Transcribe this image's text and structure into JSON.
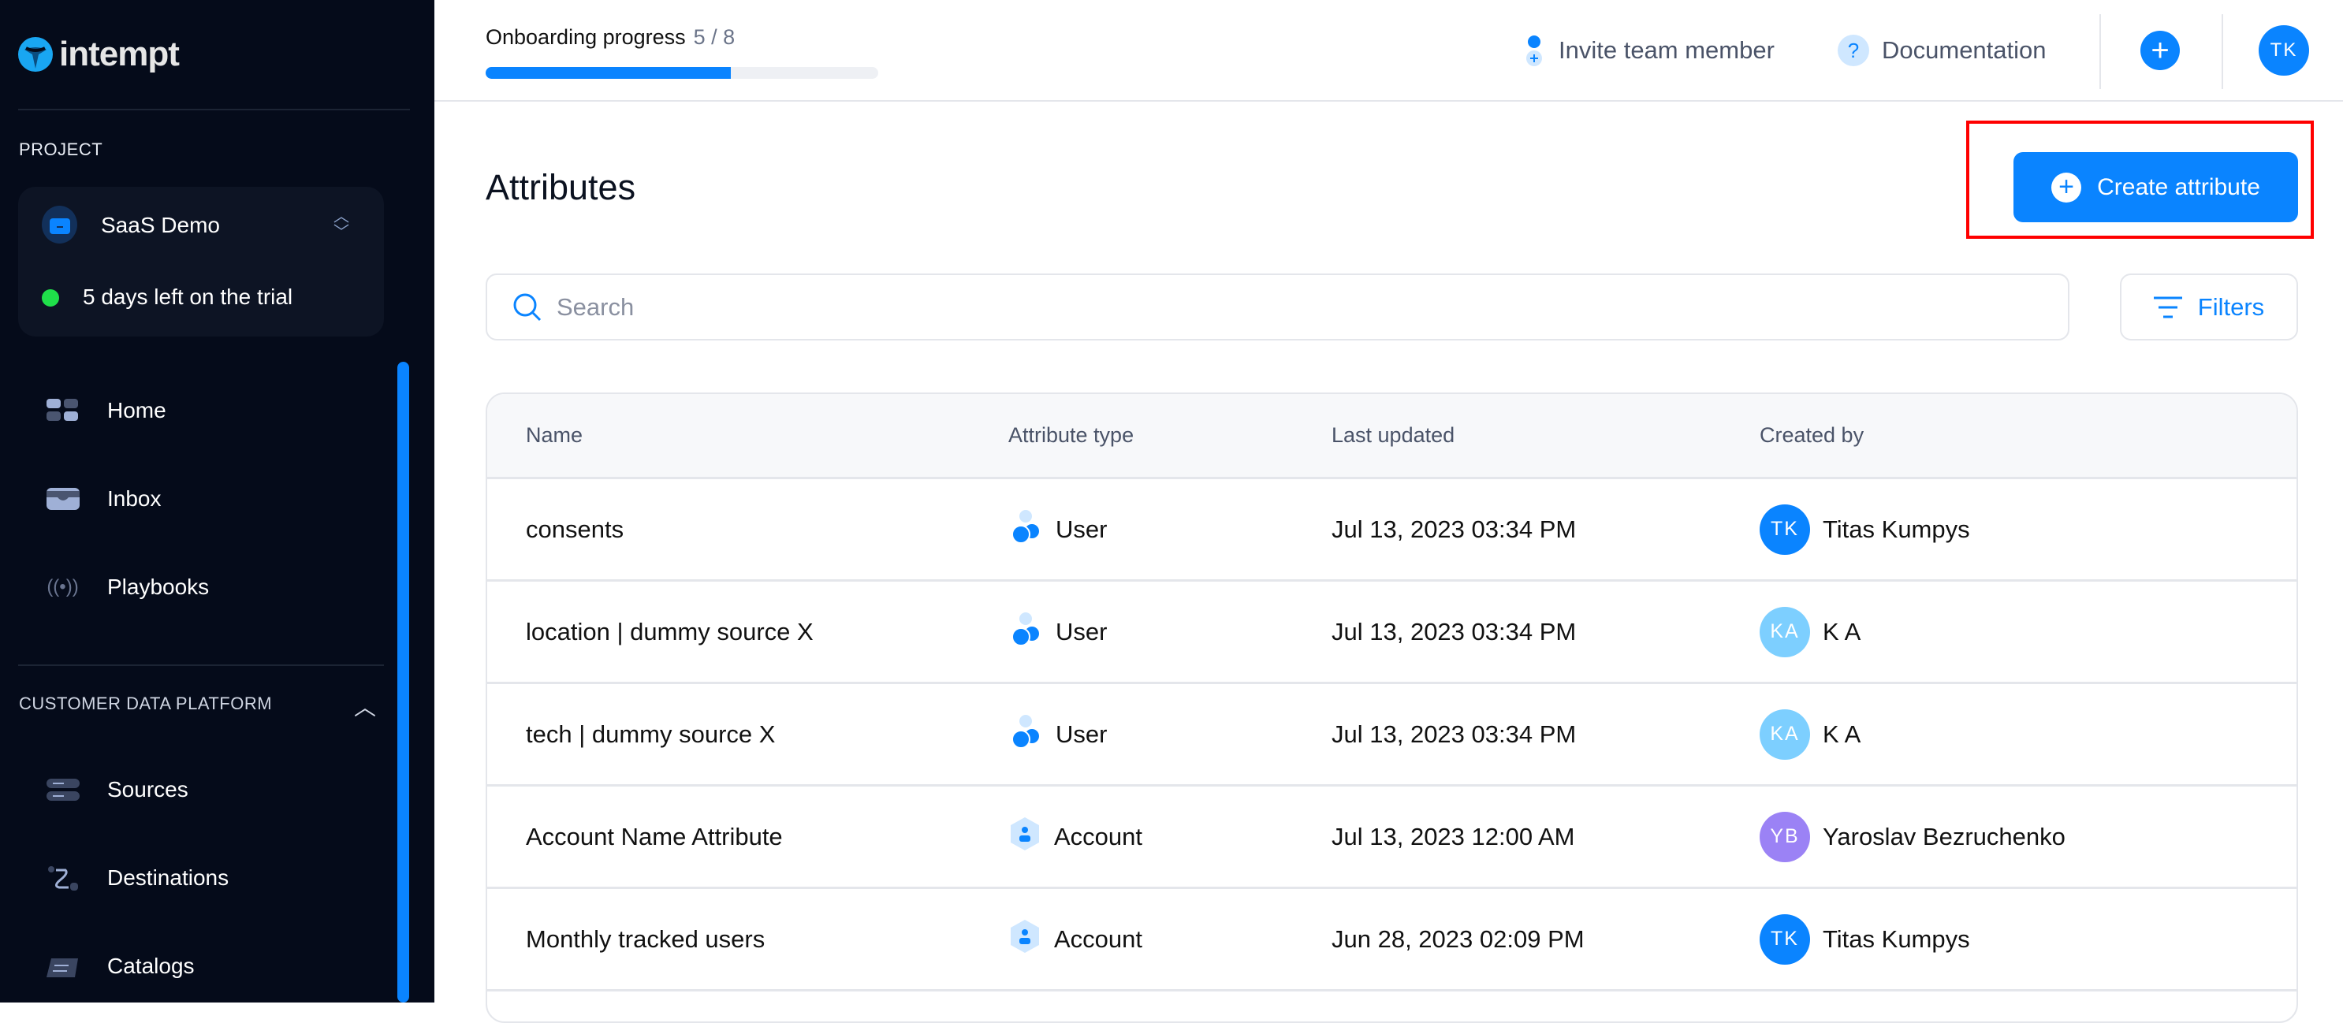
{
  "sidebar": {
    "logo": "intempt",
    "project_label": "PROJECT",
    "project_name": "SaaS Demo",
    "trial": "5 days left on the trial",
    "items": [
      {
        "label": "Home",
        "icon": "grid-icon"
      },
      {
        "label": "Inbox",
        "icon": "inbox-icon"
      },
      {
        "label": "Playbooks",
        "icon": "broadcast-icon"
      }
    ],
    "section": "CUSTOMER DATA PLATFORM",
    "section_items": [
      {
        "label": "Sources",
        "icon": "server-icon"
      },
      {
        "label": "Destinations",
        "icon": "route-icon"
      },
      {
        "label": "Catalogs",
        "icon": "calendar-icon"
      }
    ]
  },
  "topbar": {
    "onboarding_label": "Onboarding progress",
    "onboarding_count": "5 / 8",
    "onboarding_progress": 0.625,
    "invite": "Invite team member",
    "docs": "Documentation",
    "avatar": "TK"
  },
  "page": {
    "title": "Attributes",
    "create_label": "Create attribute",
    "search_placeholder": "Search",
    "filters_label": "Filters"
  },
  "table": {
    "headers": [
      "Name",
      "Attribute type",
      "Last updated",
      "Created by"
    ],
    "rows": [
      {
        "name": "consents",
        "type": "User",
        "updated": "Jul 13, 2023 03:34 PM",
        "initials": "TK",
        "creator": "Titas Kumpys",
        "color": "#0a84ff"
      },
      {
        "name": "location | dummy source X",
        "type": "User",
        "updated": "Jul 13, 2023 03:34 PM",
        "initials": "KA",
        "creator": "K A",
        "color": "#7dcfff"
      },
      {
        "name": "tech | dummy source X",
        "type": "User",
        "updated": "Jul 13, 2023 03:34 PM",
        "initials": "KA",
        "creator": "K A",
        "color": "#7dcfff"
      },
      {
        "name": "Account Name Attribute",
        "type": "Account",
        "updated": "Jul 13, 2023 12:00 AM",
        "initials": "YB",
        "creator": "Yaroslav Bezruchenko",
        "color": "#9b82f5"
      },
      {
        "name": "Monthly tracked users",
        "type": "Account",
        "updated": "Jun 28, 2023 02:09 PM",
        "initials": "TK",
        "creator": "Titas Kumpys",
        "color": "#0a84ff"
      }
    ]
  },
  "colors": {
    "accent": "#0a84ff",
    "sidebar": "#050b1a",
    "trial_dot": "#1fe04a"
  }
}
